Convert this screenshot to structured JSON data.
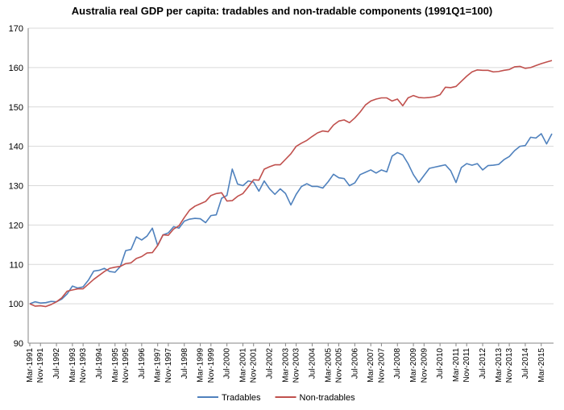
{
  "chart_data": {
    "type": "line",
    "title": "Australia real GDP per capita: tradables and non-tradable components  (1991Q1=100)",
    "xlabel": "",
    "ylabel": "",
    "ylim": [
      90,
      170
    ],
    "yticks": [
      90,
      100,
      110,
      120,
      130,
      140,
      150,
      160,
      170
    ],
    "grid": true,
    "legend_position": "bottom",
    "x_start": "1991Q1",
    "n_points": 99,
    "xtick_labels": [
      {
        "index": 0,
        "label": "Mar-1991"
      },
      {
        "index": 2,
        "label": "Nov-1991"
      },
      {
        "index": 5,
        "label": "Jul-1992"
      },
      {
        "index": 8,
        "label": "Mar-1993"
      },
      {
        "index": 10,
        "label": "Nov-1993"
      },
      {
        "index": 13,
        "label": "Jul-1994"
      },
      {
        "index": 16,
        "label": "Mar-1995"
      },
      {
        "index": 18,
        "label": "Nov-1995"
      },
      {
        "index": 21,
        "label": "Jul-1996"
      },
      {
        "index": 24,
        "label": "Mar-1997"
      },
      {
        "index": 26,
        "label": "Nov-1997"
      },
      {
        "index": 29,
        "label": "Jul-1998"
      },
      {
        "index": 32,
        "label": "Mar-1999"
      },
      {
        "index": 34,
        "label": "Nov-1999"
      },
      {
        "index": 37,
        "label": "Jul-2000"
      },
      {
        "index": 40,
        "label": "Mar-2001"
      },
      {
        "index": 42,
        "label": "Nov-2001"
      },
      {
        "index": 45,
        "label": "Jul-2002"
      },
      {
        "index": 48,
        "label": "Mar-2003"
      },
      {
        "index": 50,
        "label": "Nov-2003"
      },
      {
        "index": 53,
        "label": "Jul-2004"
      },
      {
        "index": 56,
        "label": "Mar-2005"
      },
      {
        "index": 58,
        "label": "Nov-2005"
      },
      {
        "index": 61,
        "label": "Jul-2006"
      },
      {
        "index": 64,
        "label": "Mar-2007"
      },
      {
        "index": 66,
        "label": "Nov-2007"
      },
      {
        "index": 69,
        "label": "Jul-2008"
      },
      {
        "index": 72,
        "label": "Mar-2009"
      },
      {
        "index": 74,
        "label": "Nov-2009"
      },
      {
        "index": 77,
        "label": "Jul-2010"
      },
      {
        "index": 80,
        "label": "Mar-2011"
      },
      {
        "index": 82,
        "label": "Nov-2011"
      },
      {
        "index": 85,
        "label": "Jul-2012"
      },
      {
        "index": 88,
        "label": "Mar-2013"
      },
      {
        "index": 90,
        "label": "Nov-2013"
      },
      {
        "index": 93,
        "label": "Jul-2014"
      },
      {
        "index": 96,
        "label": "Mar-2015"
      }
    ],
    "series": [
      {
        "name": "Tradables",
        "color": "#4f81bd",
        "values": [
          100.0,
          100.5,
          100.2,
          100.3,
          100.6,
          100.5,
          101.2,
          102.5,
          104.5,
          104.0,
          104.3,
          106.0,
          108.3,
          108.5,
          109.0,
          108.2,
          108.0,
          109.5,
          113.5,
          113.8,
          117.0,
          116.2,
          117.2,
          119.2,
          114.8,
          117.5,
          118.0,
          119.6,
          119.2,
          121.0,
          121.5,
          121.7,
          121.6,
          120.6,
          122.4,
          122.6,
          126.8,
          127.5,
          134.2,
          130.4,
          130.0,
          131.2,
          130.9,
          128.6,
          131.2,
          129.2,
          127.8,
          129.2,
          128.0,
          125.1,
          127.8,
          129.8,
          130.5,
          129.8,
          129.8,
          129.4,
          131.0,
          132.9,
          132.0,
          131.8,
          130.0,
          130.7,
          132.8,
          133.4,
          134.0,
          133.2,
          134.0,
          133.5,
          137.5,
          138.4,
          137.8,
          135.6,
          132.8,
          130.8,
          132.6,
          134.4,
          134.7,
          135.0,
          135.3,
          133.8,
          130.8,
          134.6,
          135.6,
          135.2,
          135.6,
          134.0,
          135.1,
          135.2,
          135.4,
          136.6,
          137.4,
          138.9,
          140.0,
          140.2,
          142.3,
          142.1,
          143.2,
          140.6,
          143.2
        ]
      },
      {
        "name": "Non-tradables",
        "color": "#c0504d",
        "values": [
          100.0,
          99.4,
          99.5,
          99.3,
          99.8,
          100.5,
          101.5,
          103.2,
          103.5,
          103.8,
          103.8,
          105.0,
          106.2,
          107.2,
          108.2,
          109.0,
          109.3,
          109.5,
          110.2,
          110.4,
          111.5,
          112.0,
          112.9,
          113.0,
          114.8,
          117.5,
          117.4,
          119.0,
          119.8,
          121.9,
          123.8,
          124.8,
          125.4,
          126.0,
          127.5,
          128.0,
          128.2,
          126.1,
          126.2,
          127.3,
          128.0,
          129.7,
          131.5,
          131.4,
          134.2,
          134.8,
          135.3,
          135.3,
          136.7,
          138.1,
          140.0,
          140.8,
          141.5,
          142.5,
          143.4,
          143.9,
          143.7,
          145.4,
          146.4,
          146.7,
          146.0,
          147.2,
          148.7,
          150.5,
          151.5,
          152.0,
          152.3,
          152.3,
          151.5,
          152.0,
          150.3,
          152.3,
          152.9,
          152.4,
          152.3,
          152.4,
          152.6,
          153.1,
          155.0,
          154.9,
          155.2,
          156.5,
          157.8,
          158.9,
          159.4,
          159.3,
          159.3,
          158.9,
          159.0,
          159.3,
          159.5,
          160.2,
          160.3,
          159.8,
          160.0,
          160.5,
          161.0,
          161.4,
          161.8
        ]
      }
    ]
  }
}
